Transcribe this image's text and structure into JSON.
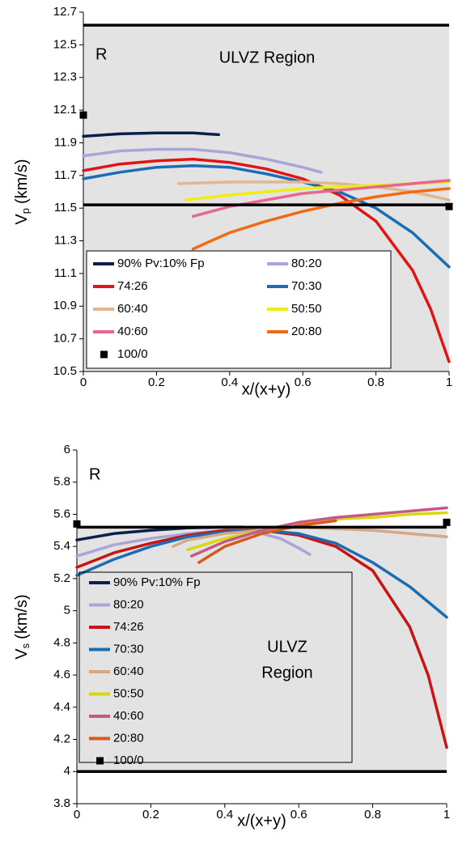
{
  "chart_data": [
    {
      "type": "line",
      "xlabel": "x/(x+y)",
      "ylabel": {
        "main": "V",
        "sub": "p",
        "unit": "(km/s)"
      },
      "xlim": [
        0,
        1
      ],
      "xticks": [
        0,
        0.2,
        0.4,
        0.6,
        0.8,
        1
      ],
      "ylim": [
        10.5,
        12.7
      ],
      "yticks": [
        10.5,
        10.7,
        10.9,
        11.1,
        11.3,
        11.5,
        11.7,
        11.9,
        12.1,
        12.3,
        12.5,
        12.7
      ],
      "shade": [
        10.5,
        12.62
      ],
      "shade_color": "#e3e3e3",
      "lines": [
        12.62,
        11.52
      ],
      "annotations": [
        "R",
        "ULVZ Region"
      ],
      "legend_columns": 2,
      "series": [
        {
          "name": "90% Pv:10% Fp",
          "color": "#0b1f4b",
          "x": [
            0,
            0.1,
            0.2,
            0.3,
            0.37
          ],
          "values": [
            11.94,
            11.955,
            11.96,
            11.96,
            11.95
          ]
        },
        {
          "name": "80:20",
          "color": "#aaa5d8",
          "x": [
            0,
            0.1,
            0.2,
            0.3,
            0.4,
            0.5,
            0.6,
            0.65
          ],
          "values": [
            11.82,
            11.85,
            11.86,
            11.86,
            11.84,
            11.8,
            11.75,
            11.72
          ]
        },
        {
          "name": "74:26",
          "color": "#e31414",
          "x": [
            0,
            0.1,
            0.2,
            0.3,
            0.4,
            0.5,
            0.6,
            0.7,
            0.8,
            0.9,
            0.95,
            1
          ],
          "values": [
            11.73,
            11.77,
            11.79,
            11.8,
            11.78,
            11.74,
            11.68,
            11.58,
            11.42,
            11.12,
            10.88,
            10.56
          ]
        },
        {
          "name": "70:30",
          "color": "#1a6cb5",
          "x": [
            0,
            0.1,
            0.2,
            0.3,
            0.4,
            0.5,
            0.6,
            0.7,
            0.8,
            0.9,
            1
          ],
          "values": [
            11.68,
            11.72,
            11.75,
            11.76,
            11.75,
            11.71,
            11.66,
            11.6,
            11.5,
            11.35,
            11.14
          ]
        },
        {
          "name": "60:40",
          "color": "#e2b68e",
          "x": [
            0.26,
            0.4,
            0.5,
            0.6,
            0.7,
            0.8,
            0.9,
            1
          ],
          "values": [
            11.65,
            11.66,
            11.66,
            11.66,
            11.65,
            11.63,
            11.6,
            11.55
          ]
        },
        {
          "name": "50:50",
          "color": "#eeee12",
          "x": [
            0.28,
            0.4,
            0.5,
            0.6,
            0.7,
            0.8,
            0.9,
            1
          ],
          "values": [
            11.55,
            11.58,
            11.6,
            11.62,
            11.63,
            11.64,
            11.65,
            11.66
          ]
        },
        {
          "name": "40:60",
          "color": "#e8678f",
          "x": [
            0.3,
            0.4,
            0.5,
            0.6,
            0.7,
            0.8,
            0.9,
            1
          ],
          "values": [
            11.45,
            11.51,
            11.55,
            11.59,
            11.61,
            11.63,
            11.65,
            11.67
          ]
        },
        {
          "name": "20:80",
          "color": "#f26a12",
          "x": [
            0.3,
            0.35,
            0.4,
            0.5,
            0.6,
            0.7,
            0.8,
            0.9,
            1
          ],
          "values": [
            11.25,
            11.3,
            11.35,
            11.42,
            11.48,
            11.53,
            11.57,
            11.6,
            11.62
          ]
        },
        {
          "name": "100/0",
          "color": "#000000",
          "marker": "square",
          "x": [
            0,
            1
          ],
          "values": [
            12.07,
            11.51
          ]
        }
      ]
    },
    {
      "type": "line",
      "xlabel": "x/(x+y)",
      "ylabel": {
        "main": "V",
        "sub": "s",
        "unit": "(km/s)"
      },
      "xlim": [
        0,
        1
      ],
      "xticks": [
        0,
        0.2,
        0.4,
        0.6,
        0.8,
        1
      ],
      "ylim": [
        3.8,
        6
      ],
      "yticks": [
        3.8,
        4,
        4.2,
        4.4,
        4.6,
        4.8,
        5,
        5.2,
        5.4,
        5.6,
        5.8,
        6
      ],
      "shade": [
        4,
        5.52
      ],
      "shade_color": "#e3e3e3",
      "lines": [
        5.52,
        4
      ],
      "annotations": [
        "R",
        "ULVZ",
        "Region"
      ],
      "legend_columns": 1,
      "series": [
        {
          "name": "90% Pv:10% Fp",
          "color": "#0b1f4b",
          "x": [
            0,
            0.1,
            0.2,
            0.3,
            0.4,
            0.45
          ],
          "values": [
            5.44,
            5.48,
            5.5,
            5.515,
            5.52,
            5.52
          ]
        },
        {
          "name": "80:20",
          "color": "#aaa5d8",
          "x": [
            0,
            0.1,
            0.2,
            0.3,
            0.4,
            0.5,
            0.55,
            0.6,
            0.63
          ],
          "values": [
            5.34,
            5.41,
            5.45,
            5.48,
            5.5,
            5.48,
            5.45,
            5.39,
            5.35
          ]
        },
        {
          "name": "74:26",
          "color": "#c81414",
          "x": [
            0,
            0.1,
            0.2,
            0.3,
            0.4,
            0.5,
            0.6,
            0.7,
            0.8,
            0.9,
            0.95,
            1
          ],
          "values": [
            5.27,
            5.36,
            5.42,
            5.47,
            5.5,
            5.5,
            5.47,
            5.4,
            5.25,
            4.9,
            4.6,
            4.15
          ]
        },
        {
          "name": "70:30",
          "color": "#1a6cb5",
          "x": [
            0,
            0.1,
            0.2,
            0.3,
            0.4,
            0.5,
            0.6,
            0.7,
            0.8,
            0.9,
            1
          ],
          "values": [
            5.22,
            5.32,
            5.4,
            5.46,
            5.49,
            5.5,
            5.48,
            5.42,
            5.3,
            5.15,
            4.96
          ]
        },
        {
          "name": "60:40",
          "color": "#d9a882",
          "x": [
            0.26,
            0.3,
            0.4,
            0.5,
            0.6,
            0.7,
            0.8,
            0.9,
            1
          ],
          "values": [
            5.4,
            5.44,
            5.48,
            5.5,
            5.52,
            5.51,
            5.5,
            5.48,
            5.46
          ]
        },
        {
          "name": "50:50",
          "color": "#d8d80e",
          "x": [
            0.3,
            0.4,
            0.5,
            0.6,
            0.7,
            0.8,
            0.9,
            1
          ],
          "values": [
            5.38,
            5.45,
            5.5,
            5.54,
            5.57,
            5.58,
            5.6,
            5.61
          ]
        },
        {
          "name": "40:60",
          "color": "#c65888",
          "x": [
            0.31,
            0.4,
            0.5,
            0.6,
            0.7,
            0.8,
            0.9,
            1
          ],
          "values": [
            5.34,
            5.43,
            5.5,
            5.55,
            5.58,
            5.6,
            5.62,
            5.64
          ]
        },
        {
          "name": "20:80",
          "color": "#d65a1a",
          "x": [
            0.33,
            0.4,
            0.5,
            0.6,
            0.7
          ],
          "values": [
            5.3,
            5.4,
            5.48,
            5.53,
            5.56
          ]
        },
        {
          "name": "100/0",
          "color": "#000000",
          "marker": "square",
          "x": [
            0,
            1
          ],
          "values": [
            5.54,
            5.55
          ]
        }
      ]
    }
  ]
}
